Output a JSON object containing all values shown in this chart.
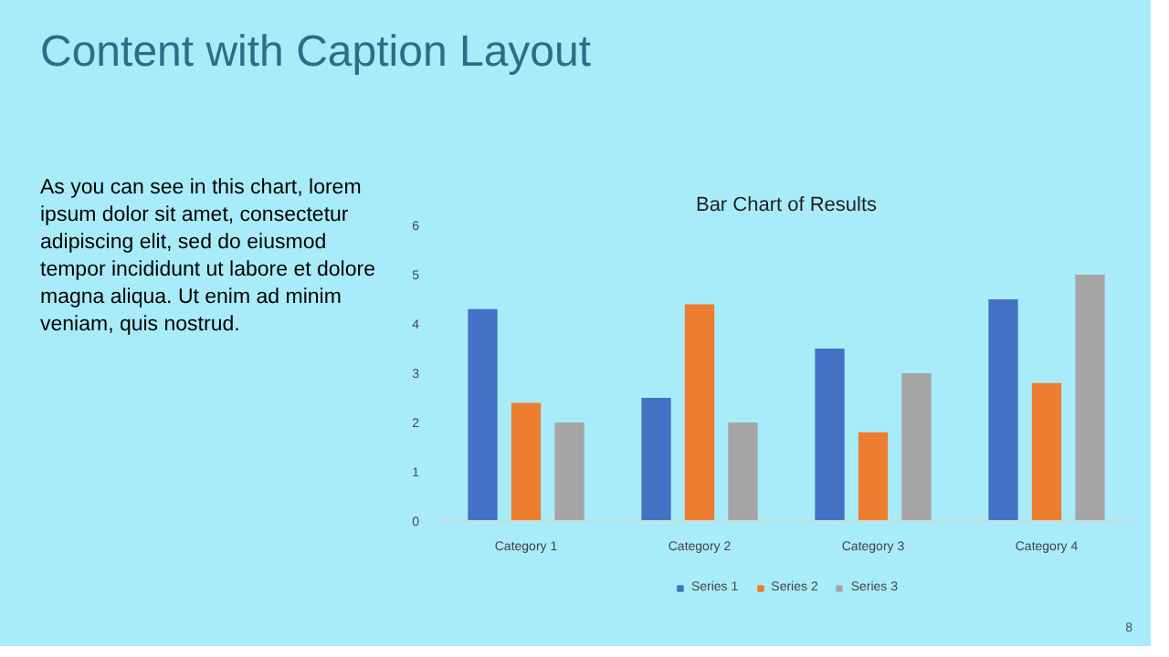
{
  "chart_data": {
    "type": "bar",
    "title": "Bar Chart of Results",
    "categories": [
      "Category 1",
      "Category 2",
      "Category 3",
      "Category 4"
    ],
    "series": [
      {
        "name": "Series 1",
        "color": "#4472c4",
        "values": [
          4.3,
          2.5,
          3.5,
          4.5
        ]
      },
      {
        "name": "Series 2",
        "color": "#ed7d31",
        "values": [
          2.4,
          4.4,
          1.8,
          2.8
        ]
      },
      {
        "name": "Series 3",
        "color": "#a5a5a5",
        "values": [
          2,
          2,
          3,
          5
        ]
      }
    ],
    "ylim": [
      0,
      6
    ],
    "yticks": [
      0,
      1,
      2,
      3,
      4,
      5,
      6
    ],
    "legend": "bottom",
    "annotations": [
      "Content with Caption Layout",
      "As you can see in this chart, lorem ipsum dolor sit amet, consectetur adipiscing elit, sed do eiusmod tempor incididunt ut labore et dolore magna aliqua. Ut enim ad minim veniam, quis nostrud.",
      "8"
    ]
  }
}
